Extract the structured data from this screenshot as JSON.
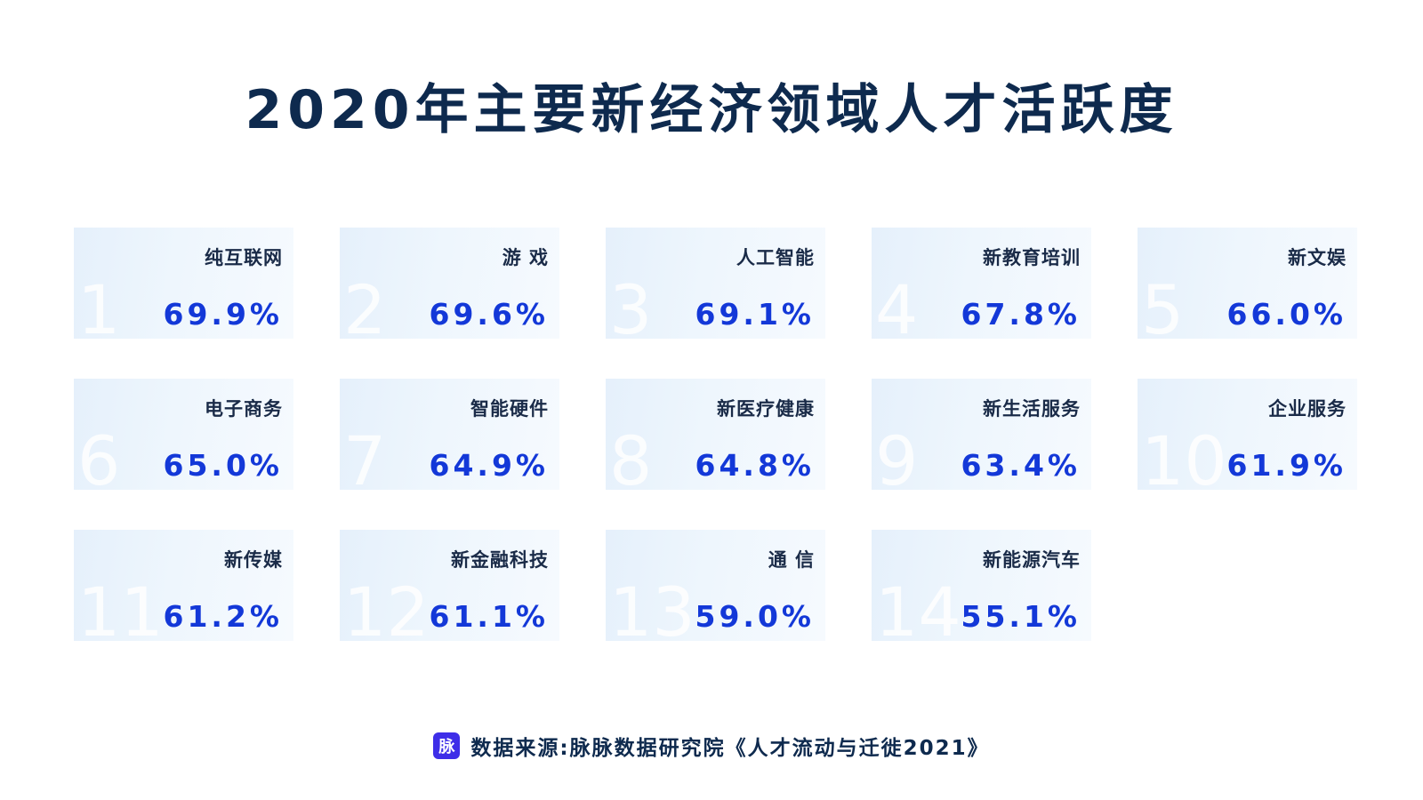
{
  "title": "2020年主要新经济领域人才活跃度",
  "chart_data": {
    "type": "table",
    "title": "2020年主要新经济领域人才活跃度",
    "items": [
      {
        "rank": "1",
        "name": "纯互联网",
        "value": 69.9,
        "display": "69.9%"
      },
      {
        "rank": "2",
        "name": "游 戏",
        "value": 69.6,
        "display": "69.6%"
      },
      {
        "rank": "3",
        "name": "人工智能",
        "value": 69.1,
        "display": "69.1%"
      },
      {
        "rank": "4",
        "name": "新教育培训",
        "value": 67.8,
        "display": "67.8%"
      },
      {
        "rank": "5",
        "name": "新文娱",
        "value": 66.0,
        "display": "66.0%"
      },
      {
        "rank": "6",
        "name": "电子商务",
        "value": 65.0,
        "display": "65.0%"
      },
      {
        "rank": "7",
        "name": "智能硬件",
        "value": 64.9,
        "display": "64.9%"
      },
      {
        "rank": "8",
        "name": "新医疗健康",
        "value": 64.8,
        "display": "64.8%"
      },
      {
        "rank": "9",
        "name": "新生活服务",
        "value": 63.4,
        "display": "63.4%"
      },
      {
        "rank": "10",
        "name": "企业服务",
        "value": 61.9,
        "display": "61.9%"
      },
      {
        "rank": "11",
        "name": "新传媒",
        "value": 61.2,
        "display": "61.2%"
      },
      {
        "rank": "12",
        "name": "新金融科技",
        "value": 61.1,
        "display": "61.1%"
      },
      {
        "rank": "13",
        "name": "通 信",
        "value": 59.0,
        "display": "59.0%"
      },
      {
        "rank": "14",
        "name": "新能源汽车",
        "value": 55.1,
        "display": "55.1%"
      }
    ]
  },
  "source": {
    "logo_text": "脉",
    "text": "数据来源:脉脉数据研究院《人才流动与迁徙2021》"
  },
  "colors": {
    "title": "#0e2a4e",
    "value": "#1338d8",
    "card_bg": "#e9f3fc",
    "logo_bg": "#3e2ee8"
  }
}
